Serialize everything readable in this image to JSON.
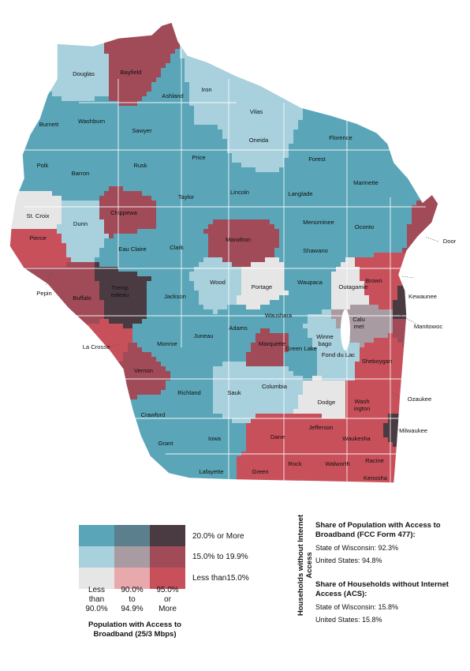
{
  "colors": {
    "high_high": "#5aa6b8",
    "mid_high": "#5b7f8c",
    "low_high": "#4a3a42",
    "high_mid": "#a9d0dd",
    "mid_mid": "#a89ba1",
    "low_mid": "#a14a58",
    "high_low": "#e6e6e6",
    "mid_low": "#e8a9ad",
    "low_low": "#c8505b",
    "outline": "#ffffff"
  },
  "map": {
    "counties": [
      "Douglas",
      "Bayfield",
      "Ashland",
      "Iron",
      "Vilas",
      "Burnett",
      "Washburn",
      "Sawyer",
      "Oneida",
      "Florence",
      "Polk",
      "Barron",
      "Rusk",
      "Price",
      "Forest",
      "Marinette",
      "Taylor",
      "Lincoln",
      "Langlade",
      "St. Croix",
      "Dunn",
      "Chippewa",
      "Menominee",
      "Oconto",
      "Pierce",
      "Eau Claire",
      "Clark",
      "Marathon",
      "Shawano",
      "Pepin",
      "Buffalo",
      "Tremp-ealeau",
      "Jackson",
      "Wood",
      "Portage",
      "Waupaca",
      "Outagamie",
      "Brown",
      "Kewaunee",
      "Manitowoc",
      "Winne-bago",
      "Calu-met",
      "Waushara",
      "Adams",
      "Juneau",
      "Monroe",
      "La Crosse",
      "Marquette",
      "Green Lake",
      "Fond du Lac",
      "Sheboygan",
      "Vernon",
      "Richland",
      "Sauk",
      "Columbia",
      "Dodge",
      "Wash-ington",
      "Ozaukee",
      "Crawford",
      "Grant",
      "Iowa",
      "Dane",
      "Jefferson",
      "Waukesha",
      "Milwaukee",
      "Lafayette",
      "Green",
      "Rock",
      "Walworth",
      "Racine",
      "Kenosha",
      "Door"
    ]
  },
  "legend": {
    "rows": [
      {
        "label": "20.0% or More",
        "cells": [
          "high_high",
          "mid_high",
          "low_high"
        ]
      },
      {
        "label": "15.0% to 19.9%",
        "cells": [
          "high_mid",
          "mid_mid",
          "low_mid"
        ]
      },
      {
        "label": "Less than15.0%",
        "cells": [
          "high_low",
          "mid_low",
          "low_low"
        ]
      }
    ],
    "columns": [
      {
        "line1": "Less",
        "line2": "than",
        "line3": "90.0%"
      },
      {
        "line1": "90.0%",
        "line2": "to",
        "line3": "94.9%"
      },
      {
        "line1": "95.0%",
        "line2": "or",
        "line3": "More"
      }
    ],
    "y_title": "Households without Internet Access",
    "x_title": "Population with Access to Broadband (25/3 Mbps)"
  },
  "stats": {
    "broadband": {
      "heading": "Share of Population with Access to Broadband (FCC Form 477):",
      "state": "State of Wisconsin: 92.3%",
      "us": "United States: 94.8%"
    },
    "households": {
      "heading": "Share of Households without Internet Access (ACS):",
      "state": "State of Wisconsin: 15.8%",
      "us": "United States: 15.8%"
    }
  }
}
